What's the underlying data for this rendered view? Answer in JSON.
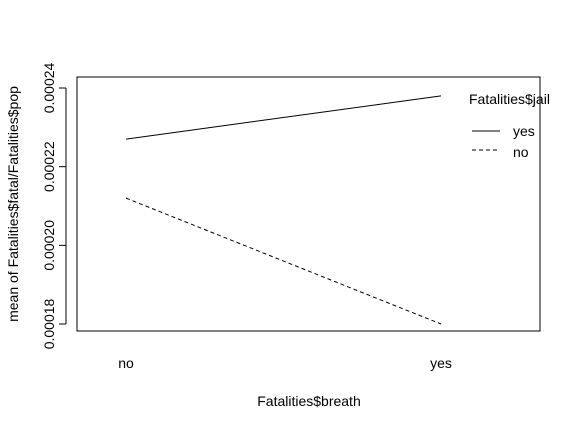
{
  "chart_data": {
    "type": "line",
    "categories": [
      "no",
      "yes"
    ],
    "series": [
      {
        "name": "yes",
        "values": [
          0.000227,
          0.000238
        ],
        "line_style": "solid"
      },
      {
        "name": "no",
        "values": [
          0.000212,
          0.00018
        ],
        "line_style": "dashed"
      }
    ],
    "xlabel": "Fatalities$breath",
    "ylabel": "mean of  Fatalities$fatal/Fatalities$pop",
    "ylim": [
      0.000176,
      0.00024
    ],
    "yticks": [
      0.00018,
      0.0002,
      0.00022,
      0.00024
    ],
    "ytick_labels": [
      "0.00018",
      "0.00020",
      "0.00022",
      "0.00024"
    ],
    "legend": {
      "title": "Fatalities$jail",
      "entries": [
        "yes",
        "no"
      ],
      "placement": "top-right"
    },
    "grid": false
  }
}
